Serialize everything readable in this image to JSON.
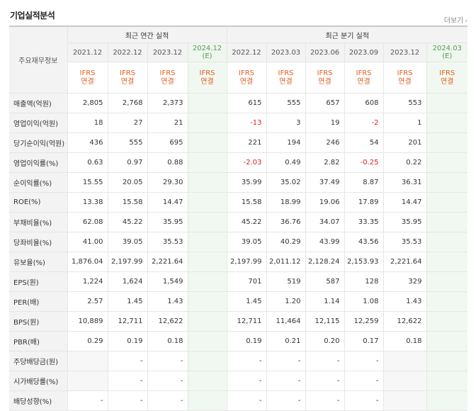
{
  "section_title": "기업실적분석",
  "more_label": "더보기",
  "row_header": "주요재무정보",
  "annual_group": "최근 연간 실적",
  "quarter_group": "최근 분기 실적",
  "annual_periods": [
    "2021.12",
    "2022.12",
    "2023.12",
    "2024.12\n(E)"
  ],
  "quarter_periods": [
    "2022.12",
    "2023.03",
    "2023.06",
    "2023.09",
    "2023.12",
    "2024.03 (E)"
  ],
  "basis_line1": "IFRS",
  "basis_line2": "연결",
  "rows": [
    {
      "label": "매출액(억원)",
      "annual": [
        "2,805",
        "2,768",
        "2,373",
        ""
      ],
      "quarter": [
        "615",
        "555",
        "657",
        "608",
        "553",
        ""
      ]
    },
    {
      "label": "영업이익(억원)",
      "annual": [
        "18",
        "27",
        "21",
        ""
      ],
      "quarter": [
        "-13",
        "3",
        "19",
        "-2",
        "1",
        ""
      ]
    },
    {
      "label": "당기순이익(억원)",
      "annual": [
        "436",
        "555",
        "695",
        ""
      ],
      "quarter": [
        "221",
        "194",
        "246",
        "54",
        "201",
        ""
      ]
    },
    {
      "label": "영업이익률(%)",
      "annual": [
        "0.63",
        "0.97",
        "0.88",
        ""
      ],
      "quarter": [
        "-2.03",
        "0.49",
        "2.82",
        "-0.25",
        "0.22",
        ""
      ]
    },
    {
      "label": "순이익률(%)",
      "annual": [
        "15.55",
        "20.05",
        "29.30",
        ""
      ],
      "quarter": [
        "35.99",
        "35.02",
        "37.49",
        "8.87",
        "36.31",
        ""
      ]
    },
    {
      "label": "ROE(%)",
      "annual": [
        "13.38",
        "15.58",
        "14.47",
        ""
      ],
      "quarter": [
        "15.58",
        "18.99",
        "19.06",
        "17.89",
        "14.47",
        ""
      ]
    },
    {
      "label": "부채비율(%)",
      "annual": [
        "62.08",
        "45.22",
        "35.95",
        ""
      ],
      "quarter": [
        "45.22",
        "36.76",
        "34.07",
        "33.35",
        "35.95",
        ""
      ]
    },
    {
      "label": "당좌비율(%)",
      "annual": [
        "41.00",
        "39.05",
        "35.53",
        ""
      ],
      "quarter": [
        "39.05",
        "40.29",
        "43.99",
        "43.56",
        "35.53",
        ""
      ]
    },
    {
      "label": "유보율(%)",
      "annual": [
        "1,876.04",
        "2,197.99",
        "2,221.64",
        ""
      ],
      "quarter": [
        "2,197.99",
        "2,011.12",
        "2,128.24",
        "2,153.93",
        "2,221.64",
        ""
      ]
    },
    {
      "label": "EPS(원)",
      "annual": [
        "1,224",
        "1,624",
        "1,549",
        ""
      ],
      "quarter": [
        "701",
        "519",
        "587",
        "128",
        "329",
        ""
      ]
    },
    {
      "label": "PER(배)",
      "annual": [
        "2.57",
        "1.45",
        "1.43",
        ""
      ],
      "quarter": [
        "1.45",
        "1.20",
        "1.14",
        "1.08",
        "1.43",
        ""
      ]
    },
    {
      "label": "BPS(원)",
      "annual": [
        "10,889",
        "12,711",
        "12,622",
        ""
      ],
      "quarter": [
        "12,711",
        "11,464",
        "12,115",
        "12,259",
        "12,622",
        ""
      ]
    },
    {
      "label": "PBR(배)",
      "annual": [
        "0.29",
        "0.19",
        "0.18",
        ""
      ],
      "quarter": [
        "0.19",
        "0.21",
        "0.20",
        "0.17",
        "0.18",
        ""
      ]
    },
    {
      "label": "주당배당금(원)",
      "annual": [
        "",
        "-",
        "-",
        ""
      ],
      "quarter": [
        "-",
        "-",
        "-",
        "-",
        "",
        ""
      ]
    },
    {
      "label": "시가배당률(%)",
      "annual": [
        "",
        "-",
        "-",
        ""
      ],
      "quarter": [
        "-",
        "-",
        "-",
        "-",
        "",
        ""
      ]
    },
    {
      "label": "배당성향(%)",
      "annual": [
        "-",
        "-",
        "-",
        ""
      ],
      "quarter": [
        "-",
        "-",
        "-",
        "-",
        "",
        ""
      ]
    }
  ]
}
